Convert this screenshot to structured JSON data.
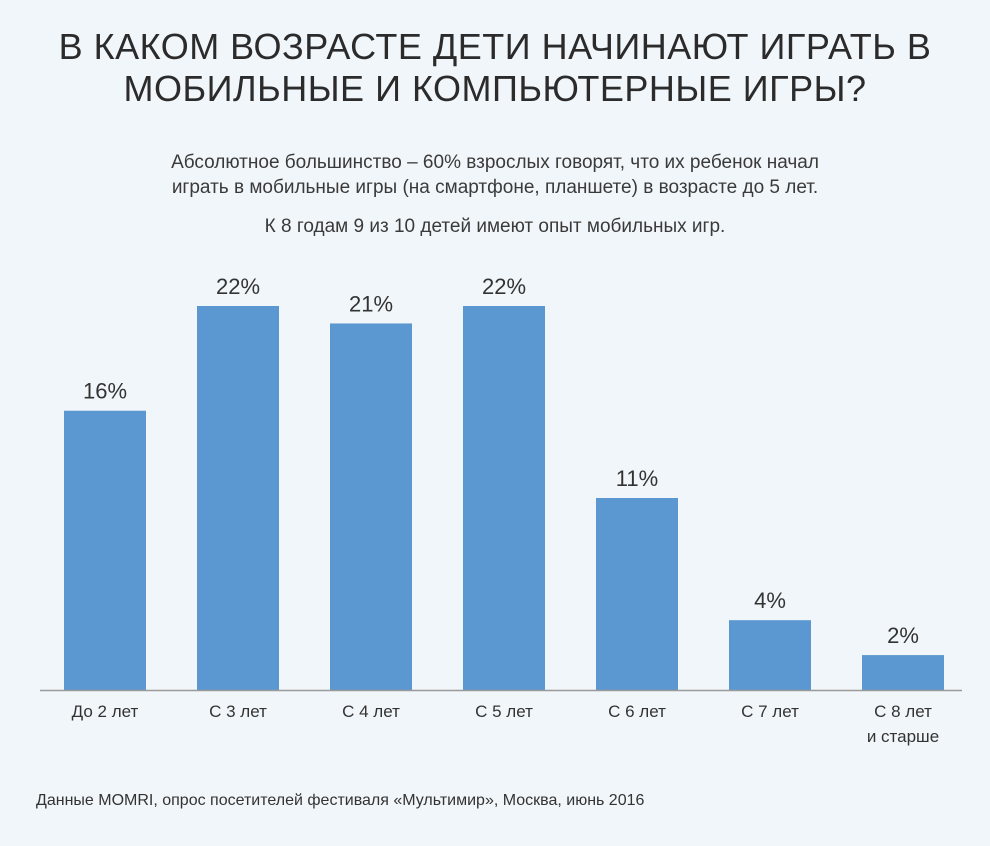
{
  "title_line1": "В КАКОМ ВОЗРАСТЕ ДЕТИ НАЧИНАЮТ ИГРАТЬ В",
  "title_line2": "МОБИЛЬНЫЕ И КОМПЬЮТЕРНЫЕ ИГРЫ?",
  "subtitle_line1": "Абсолютное большинство – 60% взрослых говорят, что их ребенок начал",
  "subtitle_line2": "играть в мобильные игры (на смартфоне, планшете) в возрасте до 5 лет.",
  "subtitle2": "К 8 годам 9 из 10 детей имеют опыт мобильных игр.",
  "source": "Данные MOMRI, опрос посетителей фестиваля «Мультимир», Москва, июнь 2016",
  "colors": {
    "bar": "#5b97d0",
    "axis": "#9a9a9a",
    "background": "#f1f6fa"
  },
  "chart_data": {
    "type": "bar",
    "categories": [
      [
        "До 2 лет"
      ],
      [
        "С 3 лет"
      ],
      [
        "С 4 лет"
      ],
      [
        "С 5 лет"
      ],
      [
        "С 6 лет"
      ],
      [
        "С 7 лет"
      ],
      [
        "С 8 лет",
        "и старше"
      ]
    ],
    "values": [
      16,
      22,
      21,
      22,
      11,
      4,
      2
    ],
    "data_labels": [
      "16%",
      "22%",
      "21%",
      "22%",
      "11%",
      "4%",
      "2%"
    ],
    "ylim": [
      0,
      22
    ],
    "grid": false,
    "legend": "none"
  }
}
